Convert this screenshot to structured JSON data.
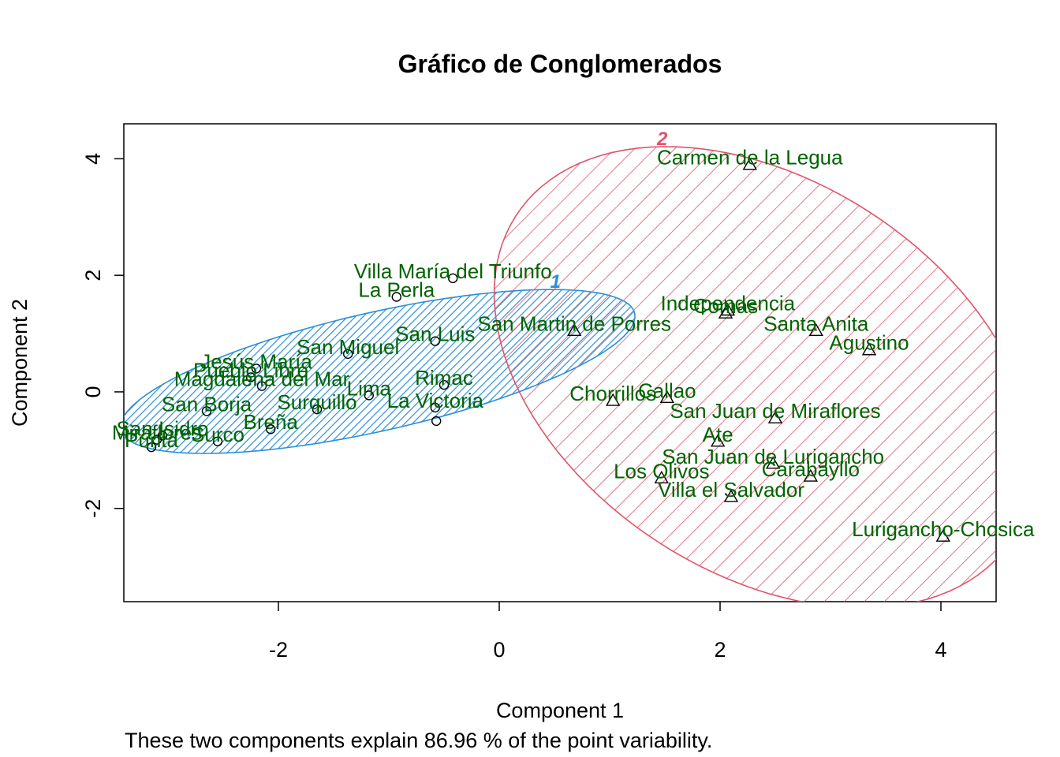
{
  "chart_data": {
    "type": "scatter",
    "title": "Gráfico de Conglomerados",
    "xlabel": "Component 1",
    "ylabel": "Component 2",
    "subtitle": "These two components explain 86.96 % of the point variability.",
    "xlim": [
      -3.4,
      4.5
    ],
    "ylim": [
      -3.6,
      4.6
    ],
    "xticks": [
      "-2",
      "0",
      "2",
      "4"
    ],
    "yticks": [
      "-2",
      "0",
      "2",
      "4"
    ],
    "grid": false,
    "colors": {
      "cluster1": "#2b8fd8",
      "cluster2": "#df536b",
      "labels": "#006400",
      "points": "#000000"
    },
    "clusters": [
      {
        "name": "1",
        "marker": "circle",
        "ellipse": {
          "center": [
            -1.1,
            0.35
          ],
          "semi_axes": [
            2.55,
            0.95
          ],
          "angle_deg": 26
        },
        "points": [
          {
            "label": "Villa María del Triunfo",
            "x": -0.42,
            "y": 1.95
          },
          {
            "label": "La Perla",
            "x": -0.93,
            "y": 1.63
          },
          {
            "label": "San Luis",
            "x": -0.58,
            "y": 0.87
          },
          {
            "label": "San Miguel",
            "x": -1.37,
            "y": 0.65
          },
          {
            "label": "Rimac",
            "x": -0.5,
            "y": 0.12
          },
          {
            "label": "Lima",
            "x": -1.18,
            "y": -0.06
          },
          {
            "label": "La Victoria",
            "x": -0.58,
            "y": -0.27
          },
          {
            "label": "",
            "x": -0.57,
            "y": -0.5
          },
          {
            "label": "Jesús María",
            "x": -2.2,
            "y": 0.4
          },
          {
            "label": "Pueblo Libre",
            "x": -2.25,
            "y": 0.25
          },
          {
            "label": "Magdalena del Mar",
            "x": -2.15,
            "y": 0.1
          },
          {
            "label": "Surquillo",
            "x": -1.65,
            "y": -0.3
          },
          {
            "label": "Breña",
            "x": -2.07,
            "y": -0.64
          },
          {
            "label": "Surco",
            "x": -2.55,
            "y": -0.85
          },
          {
            "label": "San Borja",
            "x": -2.65,
            "y": -0.33
          },
          {
            "label": "Punta",
            "x": -3.15,
            "y": -0.95
          },
          {
            "label": "Miraflores",
            "x": -3.1,
            "y": -0.82
          },
          {
            "label": "San Isidro",
            "x": -3.05,
            "y": -0.75
          }
        ]
      },
      {
        "name": "2",
        "marker": "triangle",
        "ellipse": {
          "center": [
            2.4,
            0.25
          ],
          "semi_axes": [
            4.1,
            2.2
          ],
          "angle_deg": -72
        },
        "points": [
          {
            "label": "Carmen de la Legua",
            "x": 2.27,
            "y": 3.9
          },
          {
            "label": "Independencia",
            "x": 2.07,
            "y": 1.4
          },
          {
            "label": "Comas",
            "x": 2.05,
            "y": 1.35
          },
          {
            "label": "Santa Anita",
            "x": 2.87,
            "y": 1.05
          },
          {
            "label": "Agustino",
            "x": 3.35,
            "y": 0.72
          },
          {
            "label": "San Martin de Porres",
            "x": 0.68,
            "y": 1.05
          },
          {
            "label": "Callao",
            "x": 1.52,
            "y": -0.1
          },
          {
            "label": "Chorrillos",
            "x": 1.03,
            "y": -0.15
          },
          {
            "label": "San Juan de Miraflores",
            "x": 2.5,
            "y": -0.45
          },
          {
            "label": "Ate",
            "x": 1.98,
            "y": -0.85
          },
          {
            "label": "San Juan de Lurigancho",
            "x": 2.48,
            "y": -1.23
          },
          {
            "label": "Carabayllo",
            "x": 2.82,
            "y": -1.45
          },
          {
            "label": "Los Olivos",
            "x": 1.47,
            "y": -1.48
          },
          {
            "label": "Villa el Salvador",
            "x": 2.1,
            "y": -1.8
          },
          {
            "label": "Lurigancho-Chosica",
            "x": 4.02,
            "y": -2.48
          }
        ]
      }
    ]
  }
}
